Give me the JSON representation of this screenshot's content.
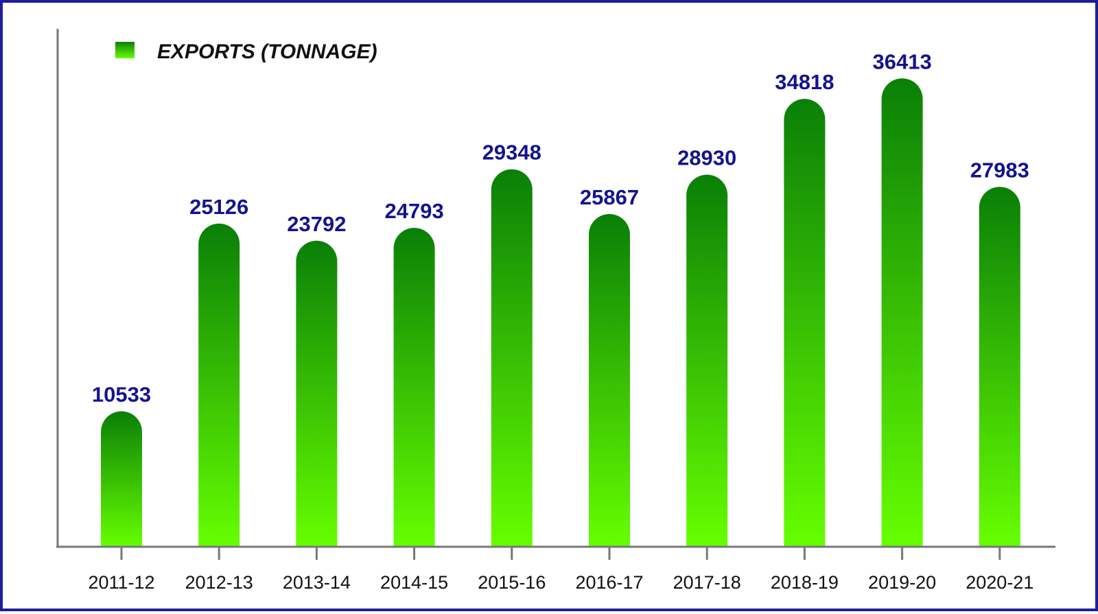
{
  "chart_data": {
    "type": "bar",
    "categories": [
      "2011-12",
      "2012-13",
      "2013-14",
      "2014-15",
      "2015-16",
      "2016-17",
      "2017-18",
      "2018-19",
      "2019-20",
      "2020-21"
    ],
    "series": [
      {
        "name": "EXPORTS (TONNAGE)",
        "values": [
          10533,
          25126,
          23792,
          24793,
          29348,
          25867,
          28930,
          34818,
          36413,
          27983
        ]
      }
    ],
    "data_labels": [
      "10533",
      "25126",
      "23792",
      "24793",
      "29348",
      "25867",
      "28930",
      "34818",
      "36413",
      "27983"
    ],
    "title": "",
    "xlabel": "",
    "ylabel": "",
    "ylim": [
      0,
      40000
    ],
    "grid": false,
    "legend_position": "top-left",
    "colors": {
      "bar_top": "#0a7f07",
      "bar_bottom": "#66ff00",
      "label": "#13138f",
      "border": "#1c1f9e",
      "axis": "#777777"
    }
  }
}
